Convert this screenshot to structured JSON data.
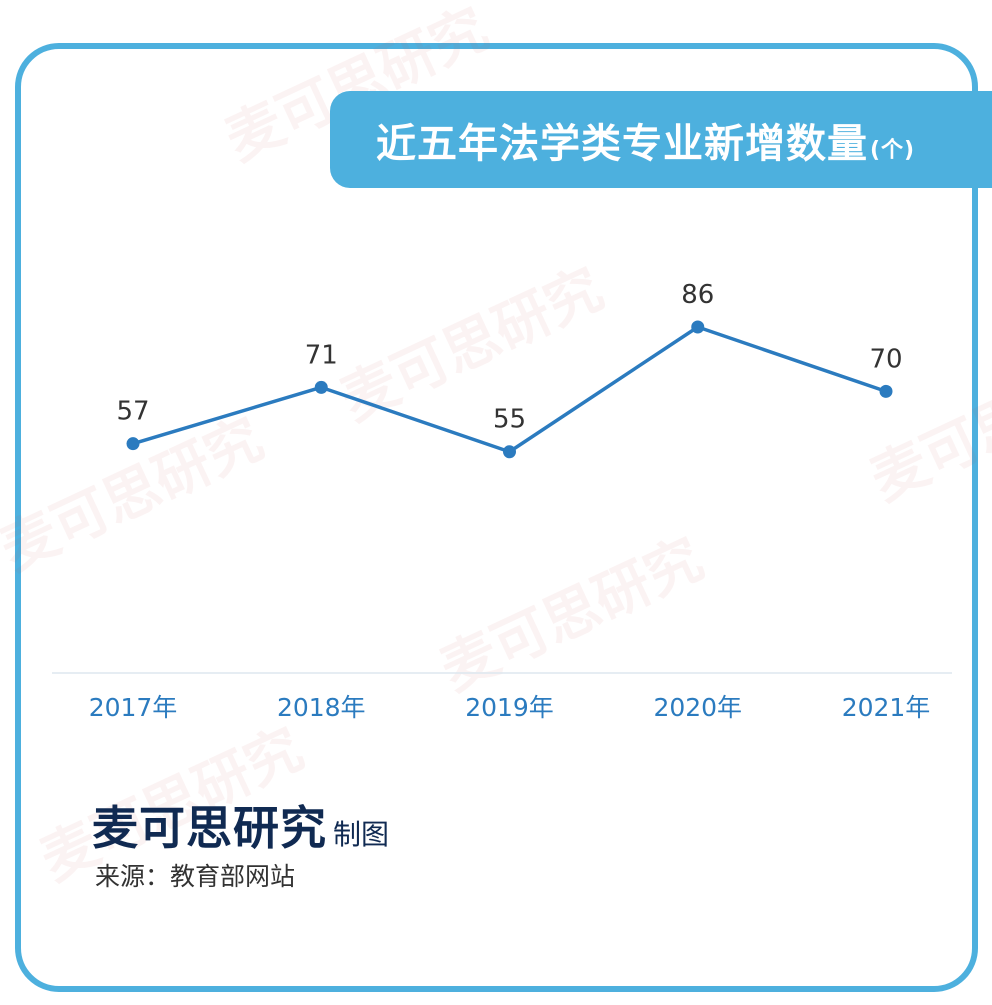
{
  "watermark": "麦可思研究",
  "header": {
    "title": "近五年法学类专业新增数量",
    "unit": "(个)"
  },
  "chart_data": {
    "type": "line",
    "categories": [
      "2017年",
      "2018年",
      "2019年",
      "2020年",
      "2021年"
    ],
    "series": [
      {
        "values": [
          57,
          71,
          55,
          86,
          70
        ]
      }
    ],
    "title": "近五年法学类专业新增数量(个)",
    "xlabel": "",
    "ylabel": "",
    "ylim": [
      0,
      130
    ],
    "grid": false,
    "legend": "none",
    "line_color": "#2b7bbf",
    "axis_label_color": "#2b7bbf",
    "data_label_color": "#333333"
  },
  "footer": {
    "brand": "麦可思研究",
    "brand_suffix": "制图",
    "source": "来源：教育部网站"
  },
  "colors": {
    "frame": "#4db0de",
    "banner": "#4db0de",
    "brand": "#102a52"
  }
}
